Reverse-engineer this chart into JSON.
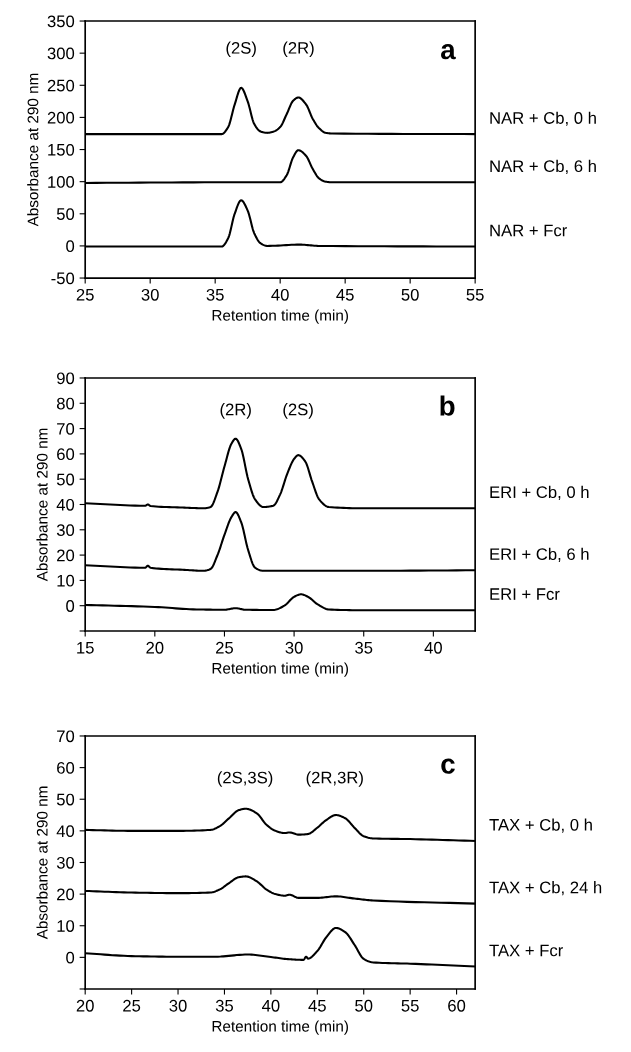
{
  "chart_data": [
    {
      "type": "line",
      "xlabel": "Retention time (min)",
      "ylabel": "Absorbance at 290 nm",
      "xlim": [
        25,
        55
      ],
      "xticks": [
        25,
        30,
        35,
        40,
        45,
        50,
        55
      ],
      "ylim": [
        -50,
        350
      ],
      "yticks": [
        -50,
        0,
        50,
        100,
        150,
        200,
        250,
        300,
        350
      ],
      "grid": false,
      "marker": "none",
      "line_style": "solid",
      "annotations": [
        "(2S)",
        "(2R)",
        "a"
      ],
      "series": [
        {
          "name": "NAR + Cb, 0 h",
          "color": "#000000",
          "x": [
            25,
            35.5,
            36,
            36.5,
            37,
            37.5,
            38,
            38.5,
            39,
            39.5,
            40,
            40.5,
            41,
            41.4,
            42,
            42.5,
            43,
            43.5,
            44,
            55
          ],
          "values": [
            174,
            174,
            185,
            220,
            246,
            225,
            190,
            178,
            176,
            178,
            185,
            205,
            226,
            231,
            220,
            198,
            183,
            176,
            175,
            174
          ]
        },
        {
          "name": "NAR + Cb, 6 h",
          "color": "#000000",
          "x": [
            25,
            35,
            40,
            40.5,
            41,
            41.4,
            42,
            42.5,
            43,
            43.5,
            44,
            55
          ],
          "values": [
            98,
            99,
            99,
            110,
            138,
            149,
            140,
            120,
            105,
            100,
            99,
            99
          ]
        },
        {
          "name": "NAR + Fcr",
          "color": "#000000",
          "x": [
            25,
            35.5,
            36,
            36.5,
            37,
            37.5,
            38,
            38.5,
            39,
            41.5,
            43,
            55
          ],
          "values": [
            -1,
            -1,
            12,
            50,
            71,
            55,
            20,
            4,
            0,
            2,
            0,
            -1
          ]
        }
      ]
    },
    {
      "type": "line",
      "xlabel": "Retention time (min)",
      "ylabel": "Absorbance at 290 nm",
      "xlim": [
        15,
        43
      ],
      "xticks": [
        15,
        20,
        25,
        30,
        35,
        40
      ],
      "ylim": [
        -10,
        90
      ],
      "yticks": [
        {
          "value": -10,
          "label": null
        },
        0,
        10,
        20,
        30,
        40,
        50,
        60,
        70,
        80,
        90
      ],
      "grid": false,
      "marker": "none",
      "line_style": "solid",
      "annotations": [
        "(2R)",
        "(2S)",
        "b"
      ],
      "series": [
        {
          "name": "ERI + Cb, 0 h",
          "color": "#000000",
          "x": [
            15,
            19.3,
            19.5,
            19.7,
            22,
            23.5,
            24,
            24.5,
            25,
            25.5,
            25.8,
            26.2,
            26.7,
            27.2,
            27.8,
            28.5,
            29,
            29.5,
            30,
            30.3,
            30.8,
            31.3,
            31.8,
            32.5,
            35,
            43
          ],
          "values": [
            40.5,
            39.5,
            40,
            39.4,
            38.8,
            38.5,
            39,
            45,
            55,
            64,
            66,
            62,
            50,
            42,
            39,
            39.5,
            44,
            52,
            58,
            59.5,
            57,
            49,
            42,
            39,
            38.5,
            38.5
          ]
        },
        {
          "name": "ERI + Cb, 6 h",
          "color": "#000000",
          "x": [
            15,
            19.3,
            19.5,
            19.7,
            22,
            23.5,
            24,
            24.5,
            25,
            25.5,
            25.8,
            26.2,
            26.7,
            27.2,
            27.8,
            35,
            43
          ],
          "values": [
            16,
            15,
            15.8,
            15,
            14.2,
            13.8,
            14.5,
            20,
            28,
            35,
            37,
            33,
            22,
            15,
            13.8,
            13.8,
            14
          ]
        },
        {
          "name": "ERI + Fcr",
          "color": "#000000",
          "x": [
            15,
            20,
            23,
            25,
            25.8,
            26.5,
            28.5,
            29.3,
            30,
            30.5,
            31,
            31.7,
            32.5,
            35,
            43
          ],
          "values": [
            0.3,
            -0.5,
            -1.5,
            -1.6,
            -1,
            -1.6,
            -1.7,
            0,
            3.5,
            4.5,
            3.5,
            0.5,
            -1.5,
            -1.8,
            -1.8
          ]
        }
      ]
    },
    {
      "type": "line",
      "xlabel": "Retention time (min)",
      "ylabel": "Absorbance at 290 nm",
      "xlim": [
        20,
        62
      ],
      "xticks": [
        20,
        25,
        30,
        35,
        40,
        45,
        50,
        55,
        60
      ],
      "ylim": [
        -10,
        70
      ],
      "yticks": [
        {
          "value": -10,
          "label": null
        },
        0,
        10,
        20,
        30,
        40,
        50,
        60,
        70
      ],
      "grid": false,
      "marker": "none",
      "line_style": "solid",
      "annotations": [
        "(2S,3S)",
        "(2R,3R)",
        "c"
      ],
      "series": [
        {
          "name": "TAX + Cb, 0 h",
          "color": "#000000",
          "x": [
            20,
            25,
            30,
            33.5,
            34.5,
            35.5,
            36.5,
            37.3,
            38.5,
            39.5,
            40.5,
            41.5,
            42,
            43,
            44,
            45,
            46,
            47,
            48,
            49,
            50,
            51,
            55,
            62
          ],
          "values": [
            40.3,
            40,
            40,
            40.3,
            41.5,
            44,
            46.5,
            47,
            45.5,
            42,
            40,
            39.3,
            39.5,
            38.8,
            39,
            41,
            43.5,
            45,
            44,
            41,
            38.3,
            37.6,
            37.4,
            36.8
          ]
        },
        {
          "name": "TAX + Cb, 24 h",
          "color": "#000000",
          "x": [
            20,
            25,
            30,
            33.5,
            34.5,
            35.5,
            36.5,
            37.3,
            38.5,
            39.5,
            40.5,
            41.5,
            42,
            43,
            45,
            47,
            49,
            51,
            62
          ],
          "values": [
            21,
            20.5,
            20.3,
            20.5,
            21.5,
            23.5,
            25.3,
            25.6,
            24,
            21.5,
            20,
            19.5,
            19.8,
            18.8,
            18.8,
            19.3,
            18.6,
            18,
            17
          ]
        },
        {
          "name": "TAX + Fcr",
          "color": "#000000",
          "x": [
            20,
            25,
            30,
            34,
            37.5,
            40,
            42,
            43.5,
            43.8,
            44,
            45,
            46,
            47,
            48,
            49,
            50,
            51,
            55,
            62
          ],
          "values": [
            1.3,
            0.4,
            0.2,
            0.2,
            0.9,
            0.1,
            -0.6,
            -0.8,
            0.2,
            -0.4,
            2,
            6.5,
            9.3,
            8,
            4,
            -0.5,
            -1.6,
            -2,
            -2.9
          ]
        }
      ]
    }
  ]
}
